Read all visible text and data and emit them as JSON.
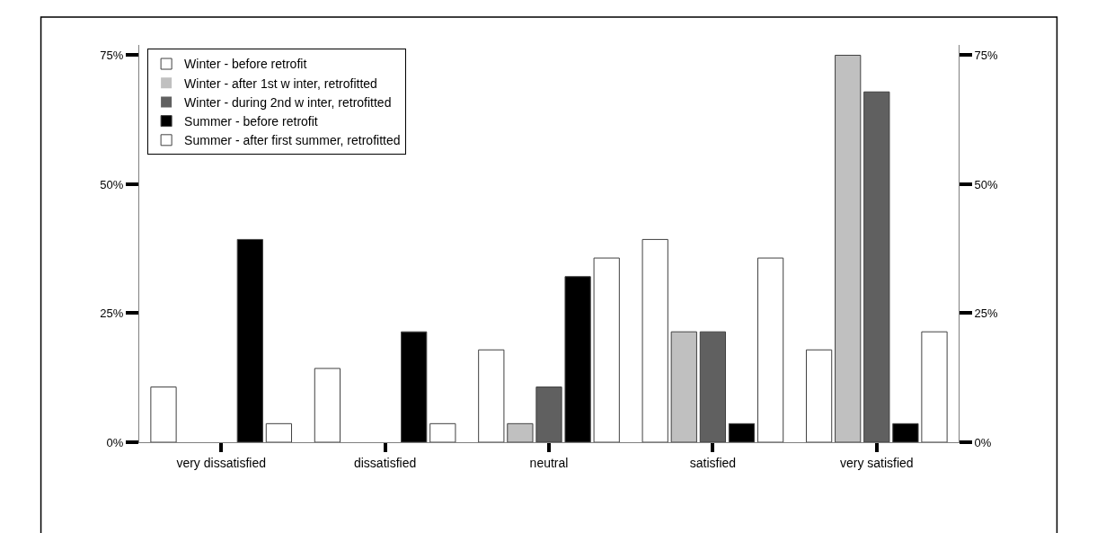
{
  "chart_data": {
    "type": "bar",
    "categories": [
      "very dissatisfied",
      "dissatisfied",
      "neutral",
      "satisfied",
      "very satisfied"
    ],
    "series": [
      {
        "name": "Winter - before retrofit",
        "color": "#ffffff",
        "values": [
          10.7,
          14.3,
          17.9,
          39.3,
          17.9
        ]
      },
      {
        "name": "Winter - after 1st w inter, retrofitted",
        "color": "#c0c0c0",
        "values": [
          0,
          0,
          3.6,
          21.4,
          75
        ]
      },
      {
        "name": "Winter - during 2nd w inter, retrofitted",
        "color": "#606060",
        "values": [
          0,
          0,
          10.7,
          21.4,
          67.9
        ]
      },
      {
        "name": "Summer - before retrofit",
        "color": "#000000",
        "values": [
          39.3,
          21.4,
          32.1,
          3.6,
          3.6
        ]
      },
      {
        "name": "Summer - after first summer, retrofitted",
        "color": "#ffffff",
        "values": [
          3.6,
          3.6,
          35.7,
          35.7,
          21.4
        ]
      }
    ],
    "ylim": [
      0,
      77
    ],
    "yticks": [
      {
        "value": 0,
        "label": "0%"
      },
      {
        "value": 25,
        "label": "25%"
      },
      {
        "value": 50,
        "label": "50%"
      },
      {
        "value": 75,
        "label": "75%"
      }
    ],
    "y2lim": [
      0,
      77
    ],
    "y2ticks": [
      {
        "value": 0,
        "label": "0%"
      },
      {
        "value": 25,
        "label": "25%"
      },
      {
        "value": 50,
        "label": "50%"
      },
      {
        "value": 75,
        "label": "75%"
      }
    ],
    "legend": "top left"
  }
}
